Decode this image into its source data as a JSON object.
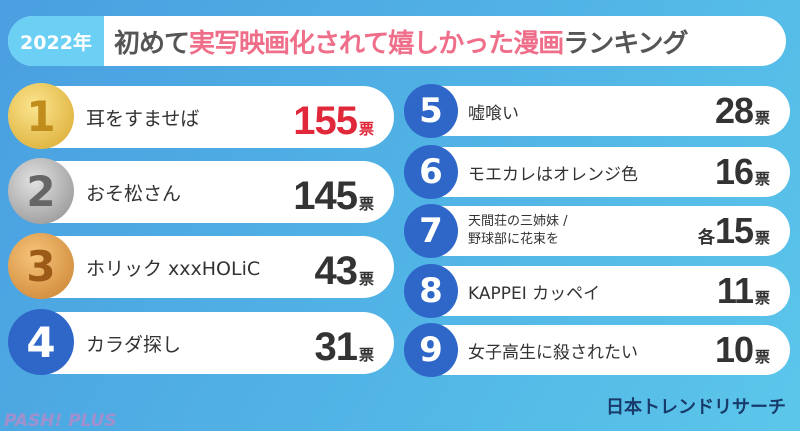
{
  "header": {
    "year": "2022年",
    "title_pre": "初めて",
    "title_pink": "実写映画化されて嬉しかった漫画",
    "title_post": "ランキング"
  },
  "ranking": [
    {
      "rank": "1",
      "name": "耳をすませば",
      "votes": "155",
      "unit": "票"
    },
    {
      "rank": "2",
      "name": "おそ松さん",
      "votes": "145",
      "unit": "票"
    },
    {
      "rank": "3",
      "name": "ホリック xxxHOLiC",
      "votes": "43",
      "unit": "票"
    },
    {
      "rank": "4",
      "name": "カラダ探し",
      "votes": "31",
      "unit": "票"
    },
    {
      "rank": "5",
      "name": "嘘喰い",
      "votes": "28",
      "unit": "票"
    },
    {
      "rank": "6",
      "name": "モエカレはオレンジ色",
      "votes": "16",
      "unit": "票"
    },
    {
      "rank": "7",
      "name": "天間荘の三姉妹 /",
      "name2": "野球部に花束を",
      "prefix": "各",
      "votes": "15",
      "unit": "票"
    },
    {
      "rank": "8",
      "name": "KAPPEI カッペイ",
      "votes": "11",
      "unit": "票"
    },
    {
      "rank": "9",
      "name": "女子高生に殺されたい",
      "votes": "10",
      "unit": "票"
    }
  ],
  "brand": "日本トレンドリサーチ",
  "logo": "PASH! PLUS"
}
